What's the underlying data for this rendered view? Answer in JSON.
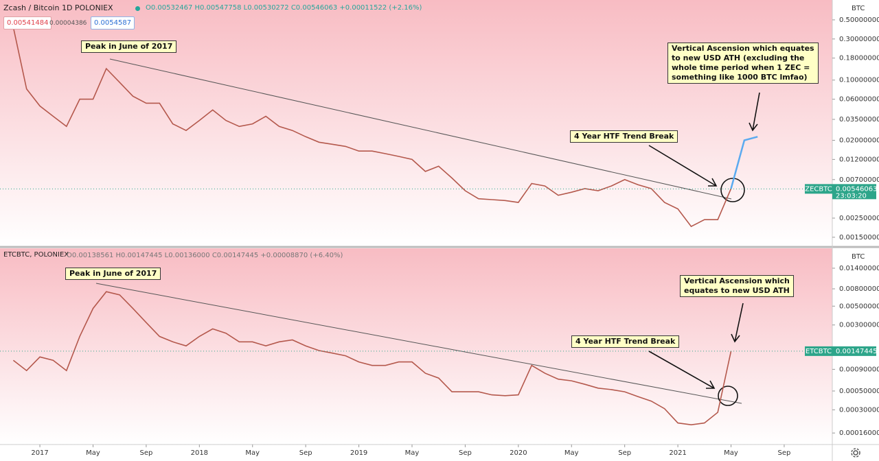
{
  "chart_data": [
    {
      "type": "line",
      "title": "Zcash / Bitcoin  1D  POLONIEX",
      "ohlc": "O0.00532467 H0.00547758 L0.00530272 C0.00546063 +0.00011522 (+2.16%)",
      "bid": 0.00541484,
      "spread": 4.386e-05,
      "ask": 0.0054587,
      "unit": "BTC",
      "log_scale": true,
      "color": "#b4584c",
      "xlim": [
        "2016-10",
        "2021-12"
      ],
      "ylim": [
        0.0012,
        0.85
      ],
      "yticks": [
        {
          "value": 0.5,
          "label": "0.50000000"
        },
        {
          "value": 0.3,
          "label": "0.30000000"
        },
        {
          "value": 0.18,
          "label": "0.18000000"
        },
        {
          "value": 0.1,
          "label": "0.10000000"
        },
        {
          "value": 0.06,
          "label": "0.06000000"
        },
        {
          "value": 0.035,
          "label": "0.03500000"
        },
        {
          "value": 0.02,
          "label": "0.02000000"
        },
        {
          "value": 0.012,
          "label": "0.01200000"
        },
        {
          "value": 0.007,
          "label": "0.00700000"
        },
        {
          "value": 0.0025,
          "label": "0.00250000"
        },
        {
          "value": 0.0015,
          "label": "0.00150000"
        }
      ],
      "x": [
        "2016-11",
        "2016-12",
        "2017-01",
        "2017-02",
        "2017-03",
        "2017-04",
        "2017-05",
        "2017-06",
        "2017-07",
        "2017-08",
        "2017-09",
        "2017-10",
        "2017-11",
        "2017-12",
        "2018-01",
        "2018-02",
        "2018-03",
        "2018-04",
        "2018-05",
        "2018-06",
        "2018-07",
        "2018-08",
        "2018-09",
        "2018-10",
        "2018-11",
        "2018-12",
        "2019-01",
        "2019-02",
        "2019-03",
        "2019-04",
        "2019-05",
        "2019-06",
        "2019-07",
        "2019-08",
        "2019-09",
        "2019-10",
        "2019-11",
        "2019-12",
        "2020-01",
        "2020-02",
        "2020-03",
        "2020-04",
        "2020-05",
        "2020-06",
        "2020-07",
        "2020-08",
        "2020-09",
        "2020-10",
        "2020-11",
        "2020-12",
        "2021-01",
        "2021-02",
        "2021-03",
        "2021-04",
        "2021-05"
      ],
      "values": [
        0.41,
        0.079,
        0.05,
        0.038,
        0.029,
        0.06,
        0.06,
        0.136,
        0.094,
        0.065,
        0.054,
        0.054,
        0.031,
        0.026,
        0.034,
        0.045,
        0.034,
        0.029,
        0.031,
        0.038,
        0.029,
        0.026,
        0.022,
        0.019,
        0.018,
        0.017,
        0.015,
        0.015,
        0.014,
        0.013,
        0.012,
        0.0087,
        0.01,
        0.0073,
        0.0052,
        0.0042,
        0.0041,
        0.004,
        0.0038,
        0.0063,
        0.0059,
        0.0046,
        0.005,
        0.0055,
        0.0052,
        0.0059,
        0.007,
        0.0061,
        0.0055,
        0.0038,
        0.0032,
        0.002,
        0.0024,
        0.0024,
        0.0055
      ],
      "projection": {
        "x": [
          "2021-05",
          "2021-06",
          "2021-07"
        ],
        "values": [
          0.0055,
          0.02,
          0.022
        ],
        "color": "#5aaaf0"
      },
      "last_price": {
        "symbol": "ZECBTC",
        "value": 0.00546063,
        "countdown": "23:03:20",
        "color": "#2da58a"
      },
      "annotations": [
        {
          "lines": [
            "Peak in June of 2017"
          ]
        },
        {
          "lines": [
            "Vertical Ascension which equates",
            "to new USD ATH (excluding the",
            "whole time period when 1 ZEC =",
            "something like 1000 BTC lmfao)"
          ]
        },
        {
          "lines": [
            "4 Year HTF Trend Break"
          ]
        }
      ]
    },
    {
      "type": "line",
      "title": "ETCBTC, POLONIEX",
      "ohlc": "O0.00138561 H0.00147445 L0.00136000 C0.00147445 +0.00008870 (+6.40%)",
      "unit": "BTC",
      "log_scale": true,
      "color": "#b4584c",
      "xlim": [
        "2016-10",
        "2021-12"
      ],
      "ylim": [
        0.000117,
        0.024
      ],
      "yticks": [
        {
          "value": 0.014,
          "label": "0.01400000"
        },
        {
          "value": 0.008,
          "label": "0.00800000"
        },
        {
          "value": 0.005,
          "label": "0.00500000"
        },
        {
          "value": 0.003,
          "label": "0.00300000"
        },
        {
          "value": 0.0009,
          "label": "0.00090000"
        },
        {
          "value": 0.0005,
          "label": "0.00050000"
        },
        {
          "value": 0.0003,
          "label": "0.00030000"
        },
        {
          "value": 0.00016,
          "label": "0.00016000"
        }
      ],
      "xticks": [
        {
          "value": "2017-01",
          "label": "2017"
        },
        {
          "value": "2017-05",
          "label": "May"
        },
        {
          "value": "2017-09",
          "label": "Sep"
        },
        {
          "value": "2018-01",
          "label": "2018"
        },
        {
          "value": "2018-05",
          "label": "May"
        },
        {
          "value": "2018-09",
          "label": "Sep"
        },
        {
          "value": "2019-01",
          "label": "2019"
        },
        {
          "value": "2019-05",
          "label": "May"
        },
        {
          "value": "2019-09",
          "label": "Sep"
        },
        {
          "value": "2020-01",
          "label": "2020"
        },
        {
          "value": "2020-05",
          "label": "May"
        },
        {
          "value": "2020-09",
          "label": "Sep"
        },
        {
          "value": "2021-01",
          "label": "2021"
        },
        {
          "value": "2021-05",
          "label": "May"
        },
        {
          "value": "2021-09",
          "label": "Sep"
        }
      ],
      "x": [
        "2016-11",
        "2016-12",
        "2017-01",
        "2017-02",
        "2017-03",
        "2017-04",
        "2017-05",
        "2017-06",
        "2017-07",
        "2017-08",
        "2017-09",
        "2017-10",
        "2017-11",
        "2017-12",
        "2018-01",
        "2018-02",
        "2018-03",
        "2018-04",
        "2018-05",
        "2018-06",
        "2018-07",
        "2018-08",
        "2018-09",
        "2018-10",
        "2018-11",
        "2018-12",
        "2019-01",
        "2019-02",
        "2019-03",
        "2019-04",
        "2019-05",
        "2019-06",
        "2019-07",
        "2019-08",
        "2019-09",
        "2019-10",
        "2019-11",
        "2019-12",
        "2020-01",
        "2020-02",
        "2020-03",
        "2020-04",
        "2020-05",
        "2020-06",
        "2020-07",
        "2020-08",
        "2020-09",
        "2020-10",
        "2020-11",
        "2020-12",
        "2021-01",
        "2021-02",
        "2021-03",
        "2021-04",
        "2021-05"
      ],
      "values": [
        0.00115,
        0.00087,
        0.00126,
        0.00115,
        0.00087,
        0.0022,
        0.0047,
        0.0074,
        0.0068,
        0.0047,
        0.0032,
        0.0022,
        0.0019,
        0.0017,
        0.0022,
        0.0027,
        0.0024,
        0.0019,
        0.0019,
        0.0017,
        0.0019,
        0.002,
        0.0017,
        0.0015,
        0.0014,
        0.0013,
        0.0011,
        0.001,
        0.001,
        0.0011,
        0.0011,
        0.00081,
        0.00071,
        0.00049,
        0.00049,
        0.00049,
        0.00045,
        0.00044,
        0.00045,
        0.001,
        0.00081,
        0.00069,
        0.00066,
        0.0006,
        0.00054,
        0.00052,
        0.00049,
        0.00043,
        0.00038,
        0.00031,
        0.00021,
        0.0002,
        0.00021,
        0.00028,
        0.00147445
      ],
      "last_price": {
        "symbol": "ETCBTC",
        "value": 0.00147445,
        "color": "#2da58a"
      },
      "annotations": [
        {
          "lines": [
            "Peak in June of 2017"
          ]
        },
        {
          "lines": [
            "Vertical Ascension which",
            "equates to new USD ATH"
          ]
        },
        {
          "lines": [
            "4 Year HTF Trend Break"
          ]
        }
      ]
    }
  ]
}
